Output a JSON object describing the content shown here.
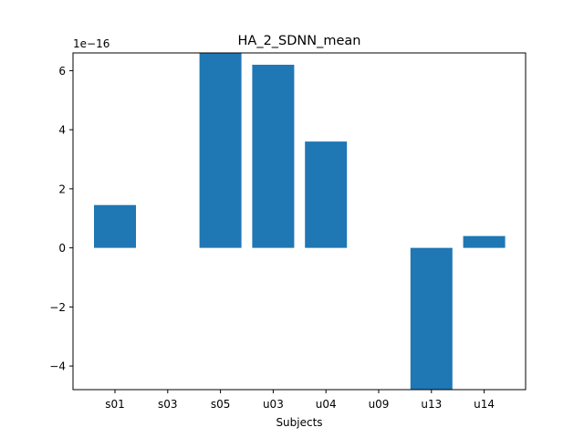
{
  "chart_data": {
    "type": "bar",
    "title": "HA_2_SDNN_mean",
    "xlabel": "Subjects",
    "ylabel": "",
    "y_offset_label": "1e−16",
    "categories": [
      "s01",
      "s03",
      "s05",
      "u03",
      "u04",
      "u09",
      "u13",
      "u14"
    ],
    "values": [
      1.45,
      0,
      6.6,
      6.2,
      3.6,
      0,
      -4.8,
      0.4
    ],
    "ylim": [
      -4.8,
      6.6
    ],
    "yticks": [
      -4,
      -2,
      0,
      2,
      4,
      6
    ],
    "ytick_labels": [
      "−4",
      "−2",
      "0",
      "2",
      "4",
      "6"
    ],
    "bar_color": "#1f77b4",
    "grid": false,
    "legend": "none"
  }
}
